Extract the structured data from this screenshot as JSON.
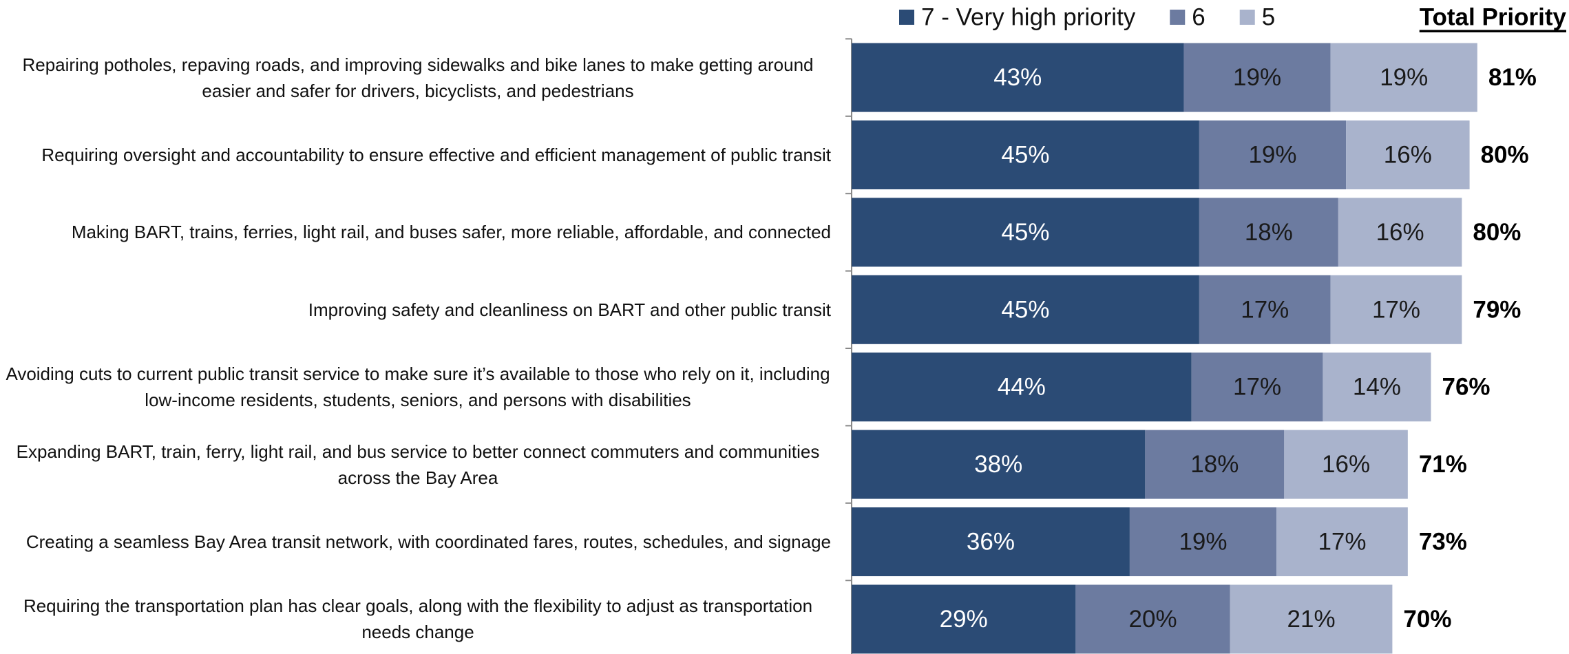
{
  "chart_data": {
    "type": "stacked-barh",
    "categories": [
      "Repairing potholes, repaving roads, and improving sidewalks and bike lanes to make getting around easier and safer for drivers, bicyclists, and pedestrians",
      "Requiring oversight and accountability to ensure effective and efficient management of public transit",
      "Making BART, trains, ferries, light rail, and buses safer, more reliable, affordable, and connected",
      "Improving safety and cleanliness on BART and other public transit",
      "Avoiding cuts to current public transit service to make sure it’s available to those who rely on it, including low-income residents, students, seniors, and persons with disabilities",
      "Expanding BART, train, ferry, light rail, and bus service to better connect commuters and communities across the Bay Area",
      "Creating a seamless Bay Area transit network, with coordinated fares, routes, schedules, and signage",
      "Requiring the transportation plan has clear goals, along with the flexibility to adjust as transportation needs change"
    ],
    "series": [
      {
        "name": "7 - Very high priority",
        "color": "#2b4b75",
        "text_color": "#ffffff",
        "values": [
          43,
          45,
          45,
          45,
          44,
          38,
          36,
          29
        ],
        "value_labels": [
          "43%",
          "45%",
          "45%",
          "45%",
          "44%",
          "38%",
          "36%",
          "29%"
        ]
      },
      {
        "name": "6",
        "color": "#6c7ba0",
        "text_color": "#1a1a1a",
        "values": [
          19,
          19,
          18,
          17,
          17,
          18,
          19,
          20
        ],
        "value_labels": [
          "19%",
          "19%",
          "18%",
          "17%",
          "17%",
          "18%",
          "19%",
          "20%"
        ]
      },
      {
        "name": "5",
        "color": "#a9b3cc",
        "text_color": "#1a1a1a",
        "values": [
          19,
          16,
          16,
          17,
          14,
          16,
          17,
          21
        ],
        "value_labels": [
          "19%",
          "16%",
          "16%",
          "17%",
          "14%",
          "16%",
          "17%",
          "21%"
        ]
      }
    ],
    "totals": {
      "name": "Total Priority",
      "values": [
        81,
        80,
        80,
        79,
        76,
        71,
        73,
        70
      ],
      "value_labels": [
        "81%",
        "80%",
        "80%",
        "79%",
        "76%",
        "71%",
        "73%",
        "70%"
      ]
    }
  }
}
